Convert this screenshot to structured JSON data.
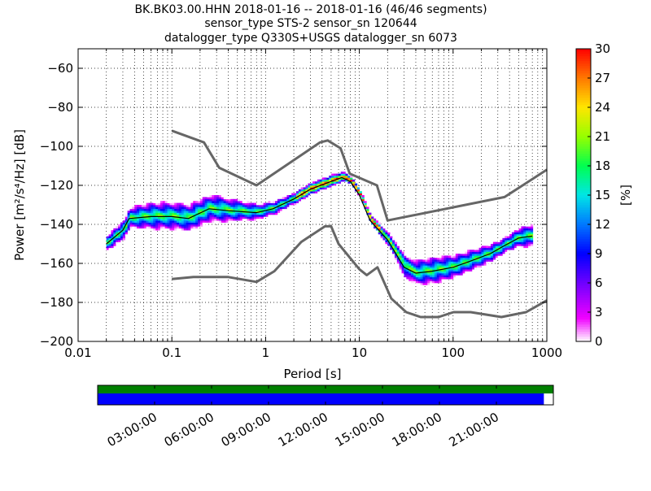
{
  "chart_data": {
    "type": "heatmap",
    "title_lines": [
      "BK.BK03.00.HHN   2018-01-16 -- 2018-01-16  (46/46 segments)",
      "sensor_type STS-2 sensor_sn 120644",
      "datalogger_type Q330S+USGS datalogger_sn 6073"
    ],
    "xlabel": "Period [s]",
    "ylabel": "Power [m²/s⁴/Hz] [dB]",
    "xscale": "log",
    "xlim": [
      0.01,
      1000
    ],
    "ylim": [
      -200,
      -50
    ],
    "xticks": [
      {
        "v": 0.01,
        "label": "0.01"
      },
      {
        "v": 0.1,
        "label": "0.1"
      },
      {
        "v": 1,
        "label": "1"
      },
      {
        "v": 10,
        "label": "10"
      },
      {
        "v": 100,
        "label": "100"
      },
      {
        "v": 1000,
        "label": "1000"
      }
    ],
    "yticks": [
      -60,
      -80,
      -100,
      -120,
      -140,
      -160,
      -180,
      -200
    ],
    "grid": true,
    "colorbar": {
      "label": "[%]",
      "range": [
        0,
        30
      ],
      "ticks": [
        0,
        3,
        6,
        9,
        12,
        15,
        18,
        21,
        24,
        27,
        30
      ]
    },
    "mean_curve": [
      [
        0.02,
        -150
      ],
      [
        0.03,
        -143
      ],
      [
        0.035,
        -137
      ],
      [
        0.06,
        -136
      ],
      [
        0.1,
        -136
      ],
      [
        0.15,
        -137
      ],
      [
        0.25,
        -132
      ],
      [
        0.4,
        -133
      ],
      [
        0.8,
        -134
      ],
      [
        1.2,
        -132
      ],
      [
        2,
        -127
      ],
      [
        3,
        -122
      ],
      [
        5,
        -118
      ],
      [
        6.5,
        -116
      ],
      [
        8,
        -118
      ],
      [
        10,
        -125
      ],
      [
        13,
        -138
      ],
      [
        20,
        -148
      ],
      [
        30,
        -162
      ],
      [
        40,
        -165
      ],
      [
        60,
        -164
      ],
      [
        100,
        -162
      ],
      [
        150,
        -159
      ],
      [
        250,
        -155
      ],
      [
        350,
        -151
      ],
      [
        500,
        -147
      ],
      [
        700,
        -146
      ]
    ],
    "pdf_spread_db": [
      [
        0.02,
        4
      ],
      [
        0.03,
        5
      ],
      [
        0.06,
        7
      ],
      [
        0.1,
        7
      ],
      [
        0.3,
        7
      ],
      [
        0.8,
        4
      ],
      [
        2,
        3
      ],
      [
        5,
        3
      ],
      [
        8,
        2
      ],
      [
        13,
        2
      ],
      [
        20,
        4
      ],
      [
        30,
        6
      ],
      [
        60,
        7
      ],
      [
        100,
        6
      ],
      [
        200,
        5
      ],
      [
        350,
        4
      ],
      [
        700,
        6
      ]
    ],
    "nhnm": [
      [
        0.1,
        -92
      ],
      [
        0.22,
        -98
      ],
      [
        0.32,
        -111
      ],
      [
        0.8,
        -120
      ],
      [
        3.8,
        -98
      ],
      [
        4.6,
        -97
      ],
      [
        6.3,
        -101
      ],
      [
        7.9,
        -114
      ],
      [
        15.4,
        -120
      ],
      [
        20,
        -138
      ],
      [
        354,
        -126
      ],
      [
        1000,
        -112
      ]
    ],
    "nlnm": [
      [
        0.1,
        -168
      ],
      [
        0.17,
        -167
      ],
      [
        0.4,
        -167
      ],
      [
        0.8,
        -169.5
      ],
      [
        1.24,
        -164
      ],
      [
        2.4,
        -149
      ],
      [
        4.3,
        -141
      ],
      [
        5,
        -141
      ],
      [
        6,
        -150
      ],
      [
        10,
        -163
      ],
      [
        12,
        -166
      ],
      [
        15.6,
        -162
      ],
      [
        21.9,
        -178
      ],
      [
        31.6,
        -185
      ],
      [
        45,
        -187.5
      ],
      [
        70,
        -187.5
      ],
      [
        101,
        -185
      ],
      [
        154,
        -185
      ],
      [
        328,
        -187.5
      ],
      [
        600,
        -185
      ],
      [
        1000,
        -179
      ]
    ],
    "timeline": {
      "range_hours": [
        0,
        24
      ],
      "coverage_hours": [
        0,
        23.5
      ],
      "tick_labels": [
        {
          "h": 3,
          "label": "03:00:00"
        },
        {
          "h": 6,
          "label": "06:00:00"
        },
        {
          "h": 9,
          "label": "09:00:00"
        },
        {
          "h": 12,
          "label": "12:00:00"
        },
        {
          "h": 15,
          "label": "15:00:00"
        },
        {
          "h": 18,
          "label": "18:00:00"
        },
        {
          "h": 21,
          "label": "21:00:00"
        }
      ],
      "colors": {
        "data": "#008000",
        "used": "#0000ff"
      }
    }
  }
}
